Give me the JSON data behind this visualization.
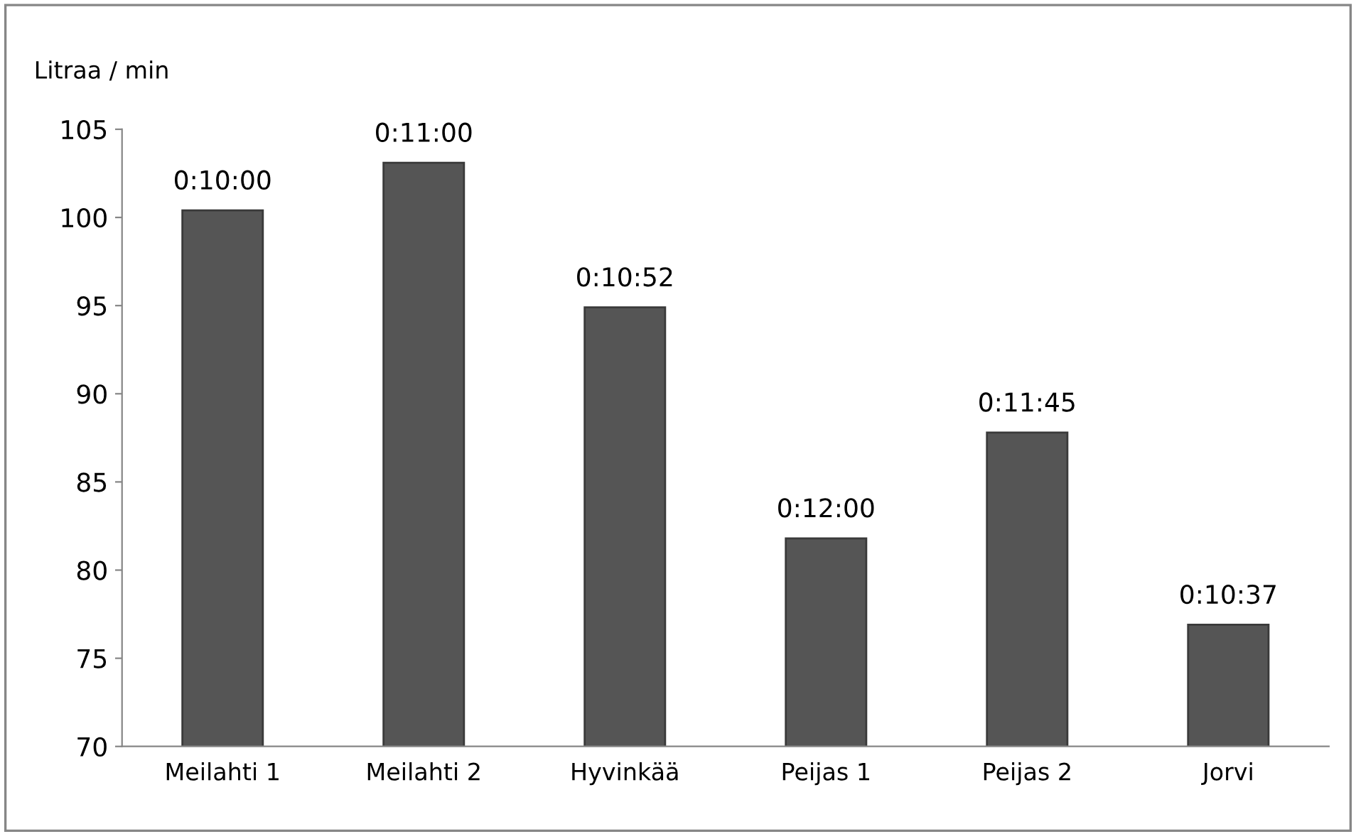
{
  "chart_data": {
    "type": "bar",
    "ylabel": "Litraa / min",
    "categories": [
      "Meilahti 1",
      "Meilahti 2",
      "Hyvinkää",
      "Peijas 1",
      "Peijas 2",
      "Jorvi"
    ],
    "values": [
      100.4,
      103.1,
      94.9,
      81.8,
      87.8,
      76.9
    ],
    "annotations": [
      {
        "text": "0:10:00",
        "x": "Meilahti 1",
        "y": 100.4
      },
      {
        "text": "0:11:00",
        "x": "Meilahti 2",
        "y": 103.1
      },
      {
        "text": "0:10:52",
        "x": "Hyvinkää",
        "y": 94.9
      },
      {
        "text": "0:12:00",
        "x": "Peijas 1",
        "y": 81.8
      },
      {
        "text": "0:11:45",
        "x": "Peijas 2",
        "y": 87.8
      },
      {
        "text": "0:10:37",
        "x": "Jorvi",
        "y": 76.9
      }
    ],
    "color": "#555555",
    "ylim": [
      70,
      105
    ],
    "yticks": [
      70,
      75,
      80,
      85,
      90,
      95,
      100,
      105
    ],
    "grid": false
  }
}
